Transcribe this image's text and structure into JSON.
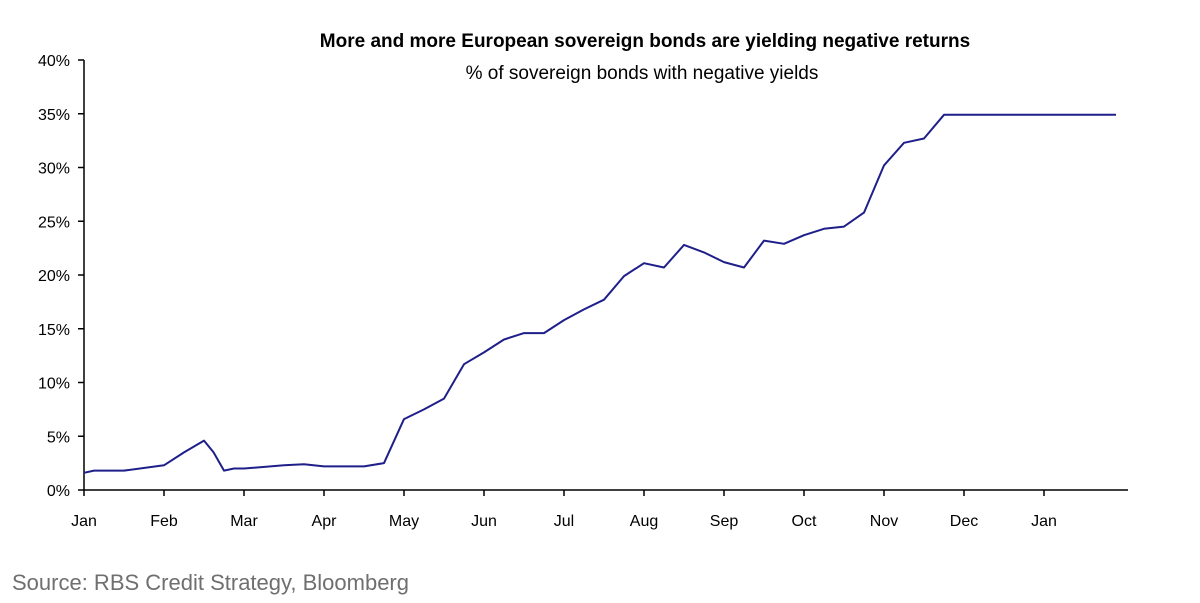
{
  "chart_data": {
    "type": "line",
    "title": "More and more European sovereign bonds are yielding negative returns",
    "subtitle": "% of sovereign bonds with negative yields",
    "xlabel": "",
    "ylabel": "",
    "categories": [
      "Jan",
      "Feb",
      "Mar",
      "Apr",
      "May",
      "Jun",
      "Jul",
      "Aug",
      "Sep",
      "Oct",
      "Nov",
      "Dec",
      "Jan"
    ],
    "y_ticks": [
      "0%",
      "5%",
      "10%",
      "15%",
      "20%",
      "25%",
      "30%",
      "35%",
      "40%"
    ],
    "ylim": [
      0,
      40
    ],
    "grid": false,
    "series": [
      {
        "color": "#1f1f8a",
        "x": [
          0,
          0.125,
          0.5,
          1.0,
          1.25,
          1.5,
          1.62,
          1.75,
          1.875,
          2.0,
          2.5,
          2.75,
          3.0,
          3.25,
          3.5,
          3.75,
          4.0,
          4.25,
          4.5,
          4.75,
          5.0,
          5.25,
          5.5,
          5.75,
          6.0,
          6.25,
          6.5,
          6.75,
          7.0,
          7.25,
          7.5,
          7.75,
          8.0,
          8.25,
          8.5,
          8.75,
          9.0,
          9.25,
          9.5,
          9.75,
          10.0,
          10.25,
          10.5,
          10.75,
          11.0,
          11.25,
          11.5,
          11.75,
          12.0,
          12.25,
          12.5,
          12.75,
          12.9
        ],
        "values": [
          1.6,
          1.8,
          1.8,
          2.3,
          3.5,
          4.6,
          3.5,
          1.8,
          2.0,
          2.0,
          2.3,
          2.4,
          2.2,
          2.2,
          2.2,
          2.5,
          6.6,
          7.5,
          8.5,
          11.7,
          12.8,
          14.0,
          14.6,
          14.6,
          15.8,
          16.8,
          17.7,
          19.9,
          21.1,
          20.7,
          22.8,
          22.1,
          21.2,
          20.7,
          23.2,
          22.9,
          23.7,
          24.3,
          24.5,
          25.8,
          30.2,
          32.3,
          32.7,
          34.9,
          34.9,
          34.9,
          34.9,
          34.9,
          34.9,
          34.9,
          34.9,
          34.9,
          34.9
        ]
      }
    ],
    "source": "Source: RBS Credit Strategy, Bloomberg"
  }
}
